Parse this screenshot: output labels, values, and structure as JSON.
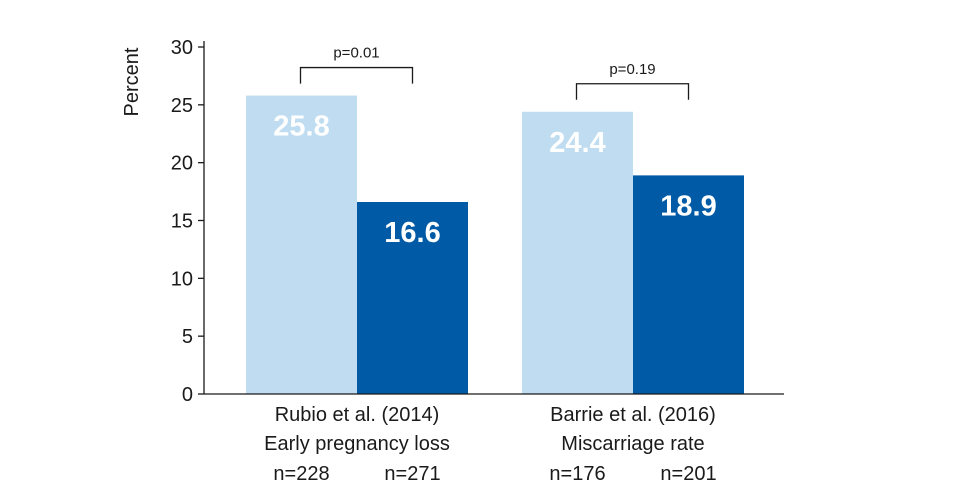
{
  "chart_data": {
    "type": "bar",
    "title": "",
    "ylabel": "Percent",
    "ylim": [
      0,
      30
    ],
    "yticks": [
      0,
      5,
      10,
      15,
      20,
      25,
      30
    ],
    "grid": false,
    "legend": "none",
    "colors": {
      "light": "#bfdcf0",
      "dark": "#005aa5",
      "axis": "#1a1a1a"
    },
    "groups": [
      {
        "label_line1": "Rubio et al. (2014)",
        "label_line2": "Early pregnancy loss",
        "pvalue": "p=0.01",
        "bars": [
          {
            "value": 25.8,
            "label": "25.8",
            "n": "n=228",
            "color_key": "light"
          },
          {
            "value": 16.6,
            "label": "16.6",
            "n": "n=271",
            "color_key": "dark"
          }
        ]
      },
      {
        "label_line1": "Barrie et al. (2016)",
        "label_line2": "Miscarriage rate",
        "pvalue": "p=0.19",
        "bars": [
          {
            "value": 24.4,
            "label": "24.4",
            "n": "n=176",
            "color_key": "light"
          },
          {
            "value": 18.9,
            "label": "18.9",
            "n": "n=201",
            "color_key": "dark"
          }
        ]
      }
    ]
  }
}
